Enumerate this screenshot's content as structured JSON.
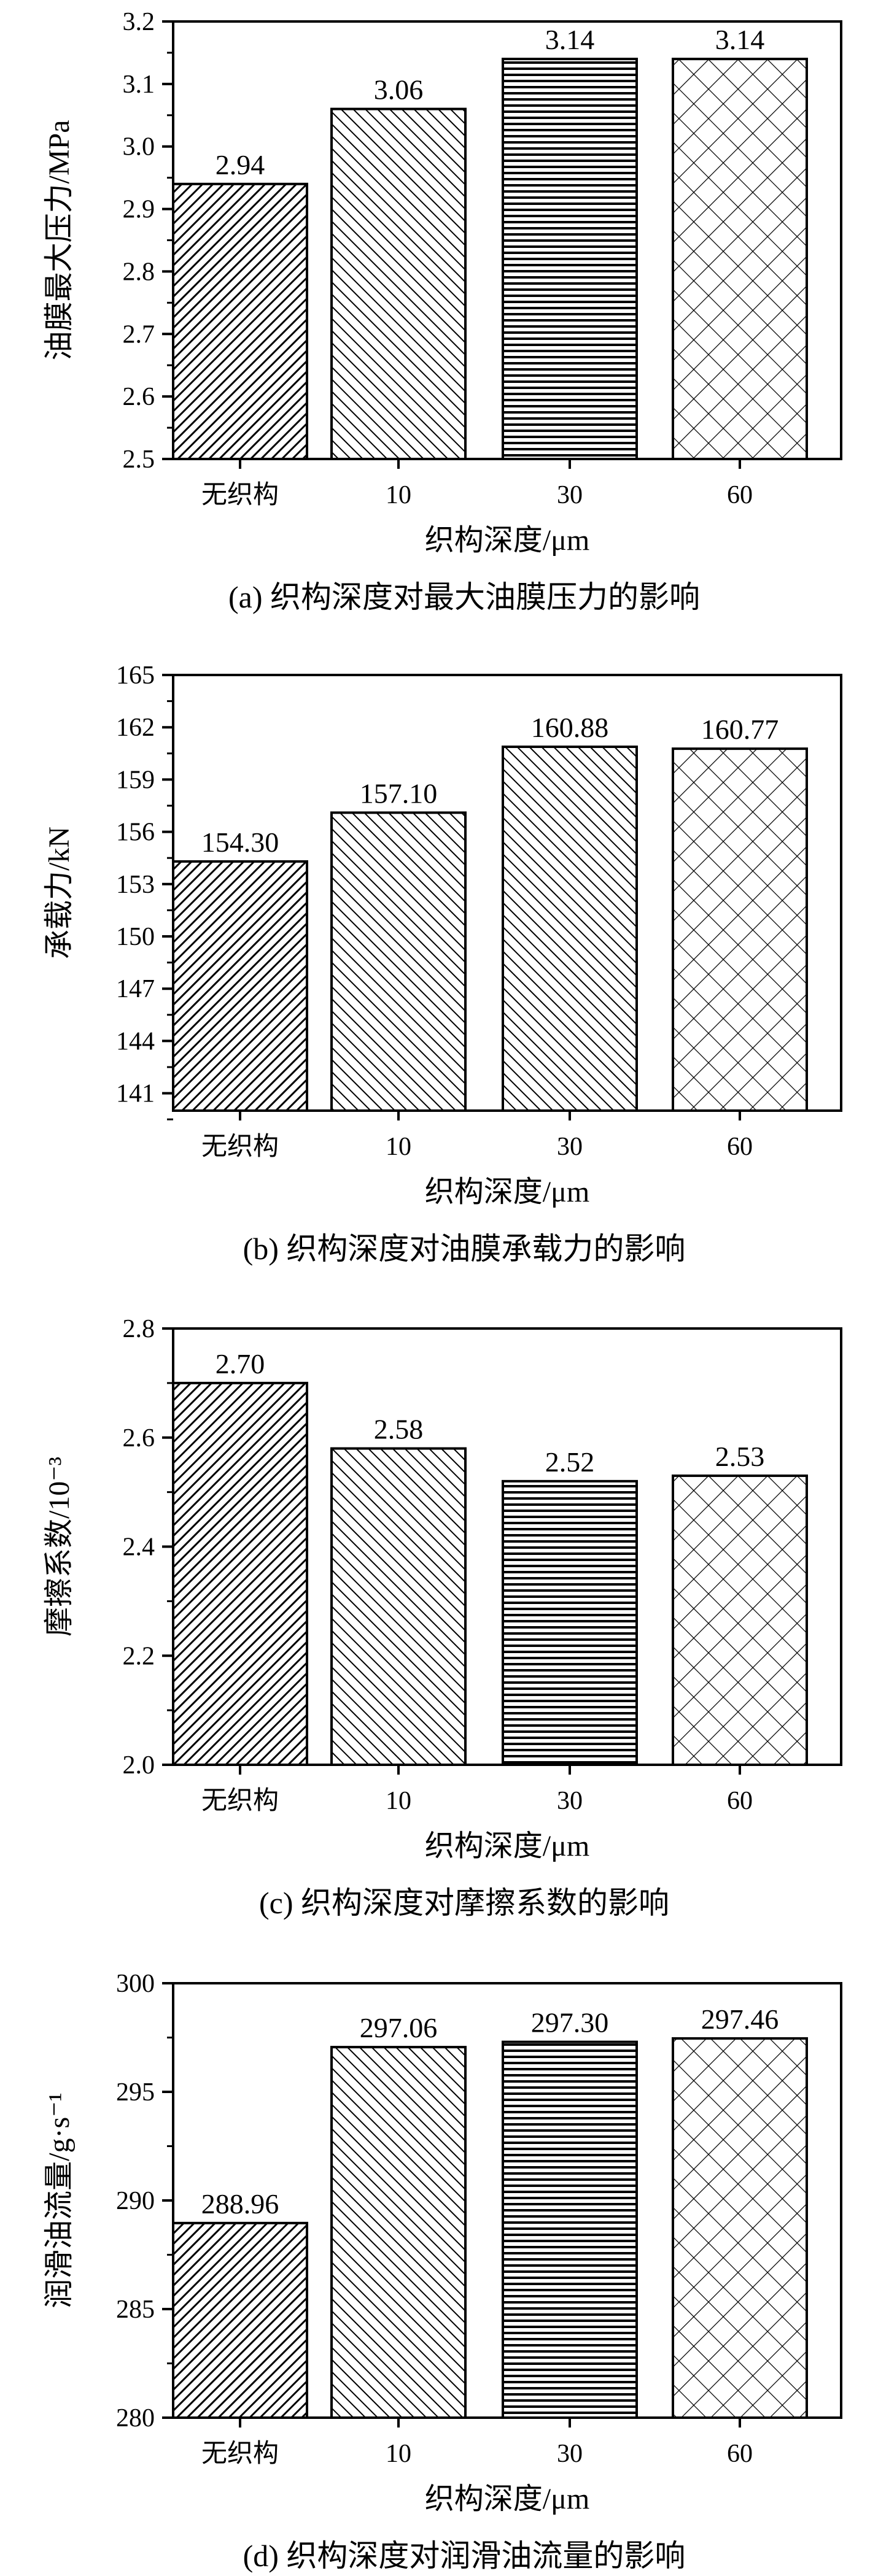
{
  "chart_data": [
    {
      "type": "bar",
      "categories": [
        "无织构",
        "10",
        "30",
        "60"
      ],
      "values": [
        2.94,
        3.06,
        3.14,
        3.14
      ],
      "data_labels": [
        "2.94",
        "3.06",
        "3.14",
        "3.14"
      ],
      "xlabel": "织构深度/μm",
      "ylabel": "油膜最大压力/MPa",
      "caption": "(a) 织构深度对最大油膜压力的影响",
      "ylim": [
        2.5,
        3.2
      ],
      "yticks": [
        2.5,
        2.6,
        2.7,
        2.8,
        2.9,
        3.0,
        3.1,
        3.2
      ],
      "ytick_labels": [
        "2.5",
        "2.6",
        "2.7",
        "2.8",
        "2.9",
        "3.0",
        "3.1",
        "3.2"
      ],
      "patterns": [
        "diagonal-dense",
        "diagonal-back",
        "horizontal",
        "crosshatch"
      ]
    },
    {
      "type": "bar",
      "categories": [
        "无织构",
        "10",
        "30",
        "60"
      ],
      "values": [
        154.3,
        157.1,
        160.88,
        160.77
      ],
      "data_labels": [
        "154.30",
        "157.10",
        "160.88",
        "160.77"
      ],
      "xlabel": "织构深度/μm",
      "ylabel": "承载力/kN",
      "caption": "(b) 织构深度对油膜承载力的影响",
      "ylim": [
        140,
        165
      ],
      "yticks": [
        141,
        144,
        147,
        150,
        153,
        156,
        159,
        162,
        165
      ],
      "ytick_labels": [
        "141",
        "144",
        "147",
        "150",
        "153",
        "156",
        "159",
        "162",
        "165"
      ],
      "patterns": [
        "diagonal-dense",
        "diagonal-back",
        "diagonal-back",
        "crosshatch"
      ]
    },
    {
      "type": "bar",
      "categories": [
        "无织构",
        "10",
        "30",
        "60"
      ],
      "values": [
        2.7,
        2.58,
        2.52,
        2.53
      ],
      "data_labels": [
        "2.70",
        "2.58",
        "2.52",
        "2.53"
      ],
      "xlabel": "织构深度/μm",
      "ylabel": "摩擦系数/10⁻³",
      "caption": "(c) 织构深度对摩擦系数的影响",
      "ylim": [
        2.0,
        2.8
      ],
      "yticks": [
        2.0,
        2.2,
        2.4,
        2.6,
        2.8
      ],
      "ytick_labels": [
        "2.0",
        "2.2",
        "2.4",
        "2.6",
        "2.8"
      ],
      "patterns": [
        "diagonal-dense",
        "diagonal-back",
        "horizontal",
        "crosshatch"
      ]
    },
    {
      "type": "bar",
      "categories": [
        "无织构",
        "10",
        "30",
        "60"
      ],
      "values": [
        288.96,
        297.06,
        297.3,
        297.46
      ],
      "data_labels": [
        "288.96",
        "297.06",
        "297.30",
        "297.46"
      ],
      "xlabel": "织构深度/μm",
      "ylabel": "润滑油流量/g·s⁻¹",
      "caption": "(d) 织构深度对润滑油流量的影响",
      "ylim": [
        280,
        300
      ],
      "yticks": [
        280,
        285,
        290,
        295,
        300
      ],
      "ytick_labels": [
        "280",
        "285",
        "290",
        "295",
        "300"
      ],
      "patterns": [
        "diagonal-dense",
        "diagonal-back",
        "horizontal",
        "crosshatch"
      ]
    }
  ]
}
